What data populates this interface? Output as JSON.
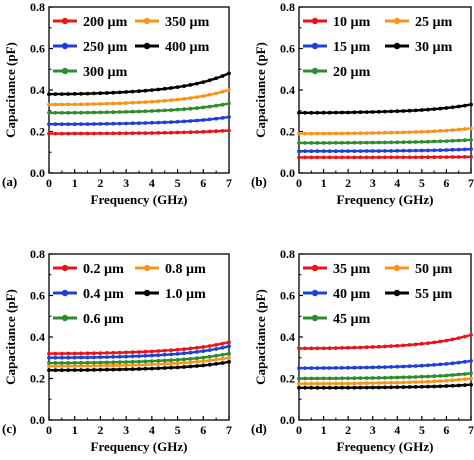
{
  "colors": {
    "red": "#e8141c",
    "orange": "#f7941d",
    "blue": "#1f3fd6",
    "black": "#000000",
    "green": "#2e8b2e"
  },
  "chart_data": [
    {
      "type": "line",
      "panel_label": "(a)",
      "xlabel": "Frequency (GHz)",
      "ylabel": "Capacitance (pF)",
      "xlim": [
        0,
        7
      ],
      "ylim": [
        0,
        0.8
      ],
      "xticks": [
        "0",
        "1",
        "2",
        "3",
        "4",
        "5",
        "6",
        "7"
      ],
      "yticks": [
        "0.0",
        "0.2",
        "0.4",
        "0.6",
        "0.8"
      ],
      "grid": false,
      "legend": "top-left, 2 columns",
      "x": [
        0,
        0.25,
        0.5,
        0.75,
        1,
        1.25,
        1.5,
        1.75,
        2,
        2.25,
        2.5,
        2.75,
        3,
        3.25,
        3.5,
        3.75,
        4,
        4.25,
        4.5,
        4.75,
        5,
        5.25,
        5.5,
        5.75,
        6,
        6.25,
        6.5,
        6.75,
        7
      ],
      "series": [
        {
          "name": "200 µm",
          "color": "red",
          "start": 0.19,
          "end": 0.205
        },
        {
          "name": "350 µm",
          "color": "orange",
          "start": 0.33,
          "end": 0.4
        },
        {
          "name": "250 µm",
          "color": "blue",
          "start": 0.235,
          "end": 0.27
        },
        {
          "name": "400 µm",
          "color": "black",
          "start": 0.38,
          "end": 0.48
        },
        {
          "name": "300 µm",
          "color": "green",
          "start": 0.29,
          "end": 0.335
        }
      ]
    },
    {
      "type": "line",
      "panel_label": "(b)",
      "xlabel": "Frequency (GHz)",
      "ylabel": "Capacitance (pF)",
      "xlim": [
        0,
        7
      ],
      "ylim": [
        0,
        0.8
      ],
      "xticks": [
        "0",
        "1",
        "2",
        "3",
        "4",
        "5",
        "6",
        "7"
      ],
      "yticks": [
        "0.0",
        "0.2",
        "0.4",
        "0.6",
        "0.8"
      ],
      "grid": false,
      "legend": "top-left, 2 columns",
      "x": [
        0,
        0.25,
        0.5,
        0.75,
        1,
        1.25,
        1.5,
        1.75,
        2,
        2.25,
        2.5,
        2.75,
        3,
        3.25,
        3.5,
        3.75,
        4,
        4.25,
        4.5,
        4.75,
        5,
        5.25,
        5.5,
        5.75,
        6,
        6.25,
        6.5,
        6.75,
        7
      ],
      "series": [
        {
          "name": "10 µm",
          "color": "red",
          "start": 0.075,
          "end": 0.078
        },
        {
          "name": "25 µm",
          "color": "orange",
          "start": 0.19,
          "end": 0.215
        },
        {
          "name": "15 µm",
          "color": "blue",
          "start": 0.105,
          "end": 0.115
        },
        {
          "name": "30 µm",
          "color": "black",
          "start": 0.29,
          "end": 0.33
        },
        {
          "name": "20 µm",
          "color": "green",
          "start": 0.145,
          "end": 0.16
        }
      ]
    },
    {
      "type": "line",
      "panel_label": "(c)",
      "xlabel": "Frequency (GHz)",
      "ylabel": "Capacitance (pF)",
      "xlim": [
        0,
        7
      ],
      "ylim": [
        0,
        0.8
      ],
      "xticks": [
        "0",
        "1",
        "2",
        "3",
        "4",
        "5",
        "6",
        "7"
      ],
      "yticks": [
        "0.0",
        "0.2",
        "0.4",
        "0.6",
        "0.8"
      ],
      "grid": false,
      "legend": "top-left, 2 columns",
      "x": [
        0,
        0.25,
        0.5,
        0.75,
        1,
        1.25,
        1.5,
        1.75,
        2,
        2.25,
        2.5,
        2.75,
        3,
        3.25,
        3.5,
        3.75,
        4,
        4.25,
        4.5,
        4.75,
        5,
        5.25,
        5.5,
        5.75,
        6,
        6.25,
        6.5,
        6.75,
        7
      ],
      "series": [
        {
          "name": "0.2 µm",
          "color": "red",
          "start": 0.32,
          "end": 0.375
        },
        {
          "name": "0.8 µm",
          "color": "orange",
          "start": 0.26,
          "end": 0.3
        },
        {
          "name": "0.4 µm",
          "color": "blue",
          "start": 0.3,
          "end": 0.355
        },
        {
          "name": "1.0 µm",
          "color": "black",
          "start": 0.24,
          "end": 0.28
        },
        {
          "name": "0.6 µm",
          "color": "green",
          "start": 0.275,
          "end": 0.32
        }
      ]
    },
    {
      "type": "line",
      "panel_label": "(d)",
      "xlabel": "Frequency (GHz)",
      "ylabel": "Capacitance (pF)",
      "xlim": [
        0,
        7
      ],
      "ylim": [
        0,
        0.8
      ],
      "xticks": [
        "0",
        "1",
        "2",
        "3",
        "4",
        "5",
        "6",
        "7"
      ],
      "yticks": [
        "0.0",
        "0.2",
        "0.4",
        "0.6",
        "0.8"
      ],
      "grid": false,
      "legend": "top-left, 2 columns",
      "x": [
        0,
        0.25,
        0.5,
        0.75,
        1,
        1.25,
        1.5,
        1.75,
        2,
        2.25,
        2.5,
        2.75,
        3,
        3.25,
        3.5,
        3.75,
        4,
        4.25,
        4.5,
        4.75,
        5,
        5.25,
        5.5,
        5.75,
        6,
        6.25,
        6.5,
        6.75,
        7
      ],
      "series": [
        {
          "name": "35 µm",
          "color": "red",
          "start": 0.345,
          "end": 0.41
        },
        {
          "name": "50 µm",
          "color": "orange",
          "start": 0.175,
          "end": 0.2
        },
        {
          "name": "40 µm",
          "color": "blue",
          "start": 0.25,
          "end": 0.285
        },
        {
          "name": "55 µm",
          "color": "black",
          "start": 0.155,
          "end": 0.17
        },
        {
          "name": "45 µm",
          "color": "green",
          "start": 0.2,
          "end": 0.225
        }
      ]
    }
  ]
}
